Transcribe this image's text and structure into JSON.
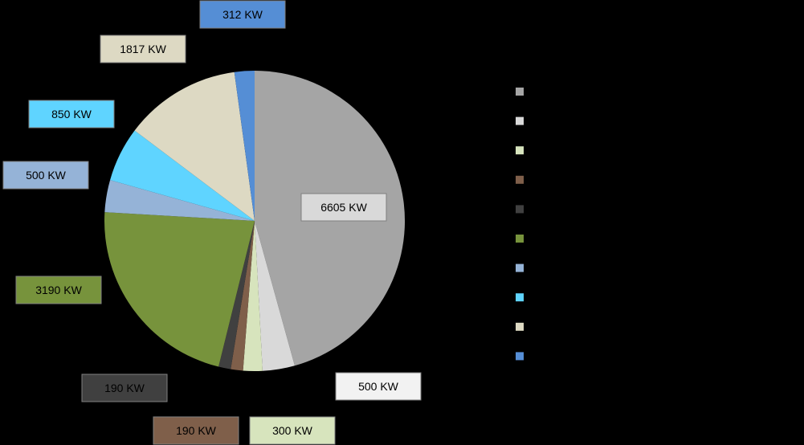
{
  "chart_data": {
    "type": "pie",
    "title": "",
    "start_angle_deg": 0,
    "direction": "clockwise",
    "slices": [
      {
        "value": 6605,
        "label": "6605 KW",
        "color": "#A5A5A5",
        "label_color": "#D9D9D9"
      },
      {
        "value": 500,
        "label": "500 KW",
        "color": "#D9D9D9",
        "label_color": "#F2F2F2"
      },
      {
        "value": 300,
        "label": "300 KW",
        "color": "#D7E4BD",
        "label_color": "#D7E4BD"
      },
      {
        "value": 190,
        "label": "190 KW",
        "color": "#7F5F4A",
        "label_color": "#7F5F4A"
      },
      {
        "value": 190,
        "label": "190 KW",
        "color": "#404040",
        "label_color": "#404040"
      },
      {
        "value": 3190,
        "label": "3190 KW",
        "color": "#77933C",
        "label_color": "#77933C"
      },
      {
        "value": 500,
        "label": "500 KW",
        "color": "#95B3D7",
        "label_color": "#95B3D7"
      },
      {
        "value": 850,
        "label": "850 KW",
        "color": "#5FD4FF",
        "label_color": "#5FD4FF"
      },
      {
        "value": 1817,
        "label": "1817 KW",
        "color": "#DDD9C3",
        "label_color": "#DDD9C3"
      },
      {
        "value": 312,
        "label": "312 KW",
        "color": "#558ED5",
        "label_color": "#558ED5"
      }
    ],
    "label_text_colors": [
      "#000000",
      "#000000",
      "#000000",
      "#000000",
      "#FFFFFF",
      "#000000",
      "#000000",
      "#000000",
      "#000000",
      "#000000"
    ],
    "legend": {
      "placement": "right",
      "entries": [
        "",
        "",
        "",
        "",
        "",
        "",
        "",
        "",
        "",
        ""
      ]
    }
  }
}
